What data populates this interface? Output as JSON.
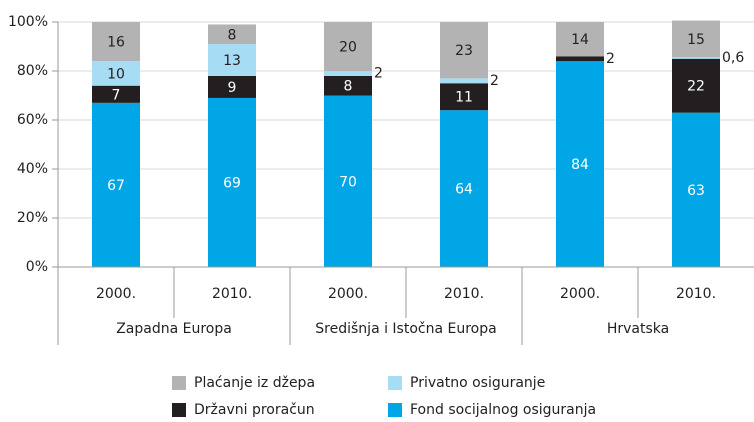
{
  "chart_data": {
    "type": "stacked_bar",
    "category_groups": [
      {
        "name": "Zapadna Europa",
        "categories": [
          "2000.",
          "2010."
        ]
      },
      {
        "name": "Središnja i Istočna Europa",
        "categories": [
          "2000.",
          "2010."
        ]
      },
      {
        "name": "Hrvatska",
        "categories": [
          "2000.",
          "2010."
        ]
      }
    ],
    "series": [
      {
        "name": "Fond socijalnog osiguranja",
        "color": "#00a6e6",
        "values": [
          67,
          69,
          70,
          64,
          84,
          63
        ]
      },
      {
        "name": "Državni proračun",
        "color": "#231f20",
        "values": [
          7,
          9,
          8,
          11,
          2,
          22
        ]
      },
      {
        "name": "Privatno osiguranje",
        "color": "#a6ddf5",
        "values": [
          10,
          13,
          2,
          2,
          null,
          0.6
        ],
        "value_labels": [
          "10",
          "13",
          "2",
          "2",
          null,
          "0,6"
        ]
      },
      {
        "name": "Plaćanje iz džepa",
        "color": "#b3b3b3",
        "values": [
          16,
          8,
          20,
          23,
          14,
          15
        ]
      }
    ],
    "ylim": [
      0,
      100
    ],
    "yticks": [
      {
        "value": 0,
        "label": "0%"
      },
      {
        "value": 20,
        "label": "20%"
      },
      {
        "value": 40,
        "label": "40%"
      },
      {
        "value": 60,
        "label": "60%"
      },
      {
        "value": 80,
        "label": "80%"
      },
      {
        "value": 100,
        "label": "100%"
      }
    ],
    "grid": true
  }
}
